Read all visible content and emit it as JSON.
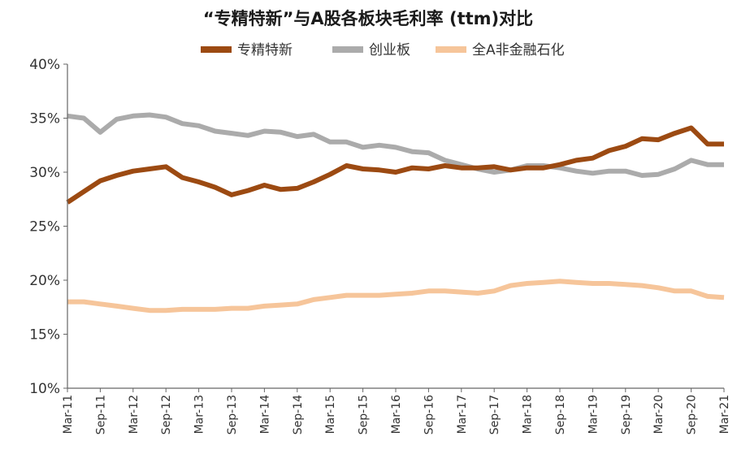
{
  "chart_data": {
    "type": "line",
    "title": "“专精特新”与A股各板块毛利率 (ttm)对比",
    "xlabel": "",
    "ylabel": "",
    "ylim": [
      10,
      40
    ],
    "yticks": [
      10,
      15,
      20,
      25,
      30,
      35,
      40
    ],
    "ytick_labels": [
      "10%",
      "15%",
      "20%",
      "25%",
      "30%",
      "35%",
      "40%"
    ],
    "grid": false,
    "legend_position": "top",
    "x_categories": [
      "Mar-11",
      "Jun-11",
      "Sep-11",
      "Dec-11",
      "Mar-12",
      "Jun-12",
      "Sep-12",
      "Dec-12",
      "Mar-13",
      "Jun-13",
      "Sep-13",
      "Dec-13",
      "Mar-14",
      "Jun-14",
      "Sep-14",
      "Dec-14",
      "Mar-15",
      "Jun-15",
      "Sep-15",
      "Dec-15",
      "Mar-16",
      "Jun-16",
      "Sep-16",
      "Dec-16",
      "Mar-17",
      "Jun-17",
      "Sep-17",
      "Dec-17",
      "Mar-18",
      "Jun-18",
      "Sep-18",
      "Dec-18",
      "Mar-19",
      "Jun-19",
      "Sep-19",
      "Dec-19",
      "Mar-20",
      "Jun-20",
      "Sep-20",
      "Dec-20",
      "Mar-21"
    ],
    "xtick_labels": [
      "Mar-11",
      "Sep-11",
      "Mar-12",
      "Sep-12",
      "Mar-13",
      "Sep-13",
      "Mar-14",
      "Sep-14",
      "Mar-15",
      "Sep-15",
      "Mar-16",
      "Sep-16",
      "Mar-17",
      "Sep-17",
      "Mar-18",
      "Sep-18",
      "Mar-19",
      "Sep-19",
      "Mar-20",
      "Sep-20",
      "Mar-21"
    ],
    "series": [
      {
        "name": "专精特新",
        "color": "#9C4A12",
        "values": [
          27.2,
          28.2,
          29.2,
          29.7,
          30.1,
          30.3,
          30.5,
          29.5,
          29.1,
          28.6,
          27.9,
          28.3,
          28.8,
          28.4,
          28.5,
          29.1,
          29.8,
          30.6,
          30.3,
          30.2,
          30.0,
          30.4,
          30.3,
          30.6,
          30.4,
          30.4,
          30.5,
          30.2,
          30.4,
          30.4,
          30.7,
          31.1,
          31.3,
          32.0,
          32.4,
          33.1,
          33.0,
          33.6,
          34.1,
          32.6,
          32.6
        ]
      },
      {
        "name": "创业板",
        "color": "#ABABAB",
        "values": [
          35.2,
          35.0,
          33.7,
          34.9,
          35.2,
          35.3,
          35.1,
          34.5,
          34.3,
          33.8,
          33.6,
          33.4,
          33.8,
          33.7,
          33.3,
          33.5,
          32.8,
          32.8,
          32.3,
          32.5,
          32.3,
          31.9,
          31.8,
          31.1,
          30.7,
          30.3,
          30.0,
          30.2,
          30.6,
          30.6,
          30.4,
          30.1,
          29.9,
          30.1,
          30.1,
          29.7,
          29.8,
          30.3,
          31.1,
          30.7,
          30.7
        ]
      },
      {
        "name": "全A非金融石化",
        "color": "#F6C59A",
        "values": [
          18.0,
          18.0,
          17.8,
          17.6,
          17.4,
          17.2,
          17.2,
          17.3,
          17.3,
          17.3,
          17.4,
          17.4,
          17.6,
          17.7,
          17.8,
          18.2,
          18.4,
          18.6,
          18.6,
          18.6,
          18.7,
          18.8,
          19.0,
          19.0,
          18.9,
          18.8,
          19.0,
          19.5,
          19.7,
          19.8,
          19.9,
          19.8,
          19.7,
          19.7,
          19.6,
          19.5,
          19.3,
          19.0,
          19.0,
          18.5,
          18.4
        ]
      }
    ]
  }
}
